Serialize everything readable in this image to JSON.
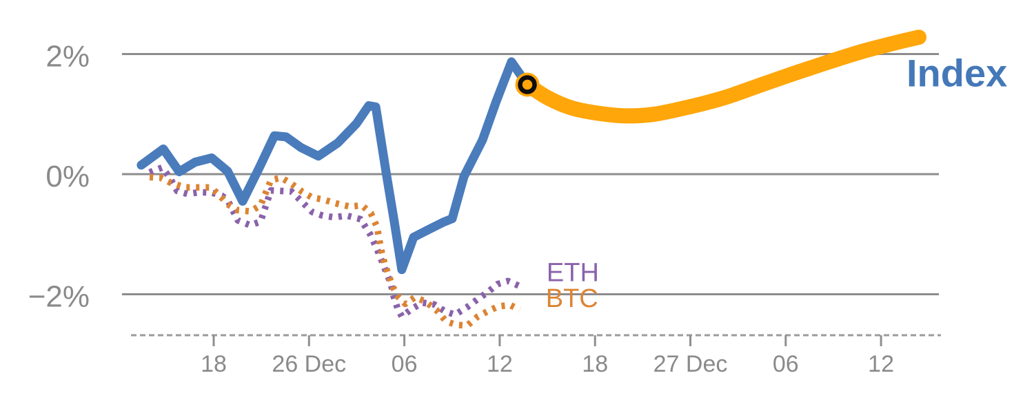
{
  "chart_data": {
    "type": "line",
    "title": "",
    "x_axis": {
      "unit": "hours (ticks every 6h, Dec 25 18:00 = t0)",
      "ticks": [
        {
          "t": 0,
          "label": "18"
        },
        {
          "t": 6,
          "label": "26 Dec"
        },
        {
          "t": 12,
          "label": "06"
        },
        {
          "t": 18,
          "label": "12"
        },
        {
          "t": 24,
          "label": "18"
        },
        {
          "t": 30,
          "label": "27 Dec"
        },
        {
          "t": 36,
          "label": "06"
        },
        {
          "t": 42,
          "label": "12"
        }
      ],
      "xlim": [
        -5.4,
        45.7
      ],
      "axis_line_style": "dashed",
      "grid": false
    },
    "y_axis": {
      "unit": "percent change",
      "ticks": [
        {
          "v": 2,
          "label": "2%"
        },
        {
          "v": 0,
          "label": "0%"
        },
        {
          "v": -2,
          "label": "−2%"
        }
      ],
      "ylim": [
        -2.68,
        2.4
      ],
      "gridlines": [
        2,
        0,
        -2
      ],
      "grid_color": "#8c8c8c",
      "label_color": "#8a8a8a"
    },
    "series": [
      {
        "name": "ETH",
        "color": "#8a62ab",
        "style": "dotted",
        "width": 9.5,
        "smooth": false,
        "points": [
          [
            -4.03,
            0.03
          ],
          [
            -3.25,
            0.11
          ],
          [
            -2.78,
            -0.05
          ],
          [
            -2.3,
            -0.28
          ],
          [
            -1.65,
            -0.33
          ],
          [
            -0.87,
            -0.3
          ],
          [
            -0.09,
            -0.31
          ],
          [
            0.52,
            -0.36
          ],
          [
            0.87,
            -0.43
          ],
          [
            1.52,
            -0.77
          ],
          [
            2.3,
            -0.85
          ],
          [
            2.95,
            -0.79
          ],
          [
            3.6,
            -0.27
          ],
          [
            4.25,
            -0.28
          ],
          [
            4.9,
            -0.29
          ],
          [
            5.55,
            -0.46
          ],
          [
            6.2,
            -0.63
          ],
          [
            6.86,
            -0.69
          ],
          [
            7.59,
            -0.72
          ],
          [
            8.37,
            -0.69
          ],
          [
            9.24,
            -0.75
          ],
          [
            9.85,
            -1.0
          ],
          [
            10.28,
            -1.25
          ],
          [
            10.63,
            -1.48
          ],
          [
            10.85,
            -1.63
          ],
          [
            11.15,
            -1.82
          ],
          [
            11.32,
            -2.03
          ],
          [
            11.58,
            -2.24
          ],
          [
            11.84,
            -2.37
          ],
          [
            12.49,
            -2.24
          ],
          [
            13.15,
            -2.14
          ],
          [
            13.88,
            -2.17
          ],
          [
            14.53,
            -2.28
          ],
          [
            15.18,
            -2.34
          ],
          [
            15.92,
            -2.22
          ],
          [
            16.57,
            -2.09
          ],
          [
            17.22,
            -1.97
          ],
          [
            17.87,
            -1.83
          ],
          [
            18.52,
            -1.78
          ],
          [
            19.22,
            -1.86
          ]
        ]
      },
      {
        "name": "BTC",
        "color": "#dc8433",
        "style": "dotted",
        "width": 9.5,
        "smooth": false,
        "points": [
          [
            -4.03,
            -0.05
          ],
          [
            -3.34,
            -0.06
          ],
          [
            -2.73,
            -0.14
          ],
          [
            -2.39,
            -0.17
          ],
          [
            -1.82,
            -0.22
          ],
          [
            -1.0,
            -0.22
          ],
          [
            -0.22,
            -0.22
          ],
          [
            0.3,
            -0.33
          ],
          [
            0.87,
            -0.5
          ],
          [
            1.52,
            -0.6
          ],
          [
            2.3,
            -0.62
          ],
          [
            2.95,
            -0.52
          ],
          [
            3.6,
            -0.1
          ],
          [
            4.25,
            -0.06
          ],
          [
            4.9,
            -0.16
          ],
          [
            5.55,
            -0.29
          ],
          [
            6.2,
            -0.39
          ],
          [
            6.86,
            -0.42
          ],
          [
            7.59,
            -0.48
          ],
          [
            8.55,
            -0.54
          ],
          [
            9.33,
            -0.52
          ],
          [
            9.89,
            -0.65
          ],
          [
            10.28,
            -0.88
          ],
          [
            10.54,
            -1.26
          ],
          [
            10.76,
            -1.49
          ],
          [
            10.98,
            -1.66
          ],
          [
            11.28,
            -1.88
          ],
          [
            11.63,
            -2.05
          ],
          [
            12.06,
            -2.16
          ],
          [
            12.67,
            -2.05
          ],
          [
            13.32,
            -2.12
          ],
          [
            14.01,
            -2.26
          ],
          [
            14.62,
            -2.45
          ],
          [
            15.27,
            -2.51
          ],
          [
            15.97,
            -2.52
          ],
          [
            16.62,
            -2.37
          ],
          [
            17.27,
            -2.28
          ],
          [
            17.92,
            -2.2
          ],
          [
            18.66,
            -2.18
          ],
          [
            19.26,
            -2.26
          ]
        ]
      },
      {
        "name": "Index",
        "color": "#4a7cbc",
        "style": "solid",
        "width": 13,
        "smooth": false,
        "points": [
          [
            -4.56,
            0.15
          ],
          [
            -3.17,
            0.42
          ],
          [
            -2.17,
            0.04
          ],
          [
            -1.17,
            0.2
          ],
          [
            -0.13,
            0.27
          ],
          [
            0.87,
            0.05
          ],
          [
            1.82,
            -0.45
          ],
          [
            2.82,
            0.08
          ],
          [
            3.82,
            0.64
          ],
          [
            4.56,
            0.62
          ],
          [
            5.51,
            0.44
          ],
          [
            6.59,
            0.3
          ],
          [
            7.81,
            0.52
          ],
          [
            8.98,
            0.84
          ],
          [
            9.76,
            1.14
          ],
          [
            10.2,
            1.12
          ],
          [
            10.85,
            0.03
          ],
          [
            11.37,
            -0.8
          ],
          [
            11.84,
            -1.59
          ],
          [
            12.58,
            -1.05
          ],
          [
            13.54,
            -0.92
          ],
          [
            14.45,
            -0.8
          ],
          [
            15.01,
            -0.74
          ],
          [
            15.75,
            -0.04
          ],
          [
            16.92,
            0.57
          ],
          [
            17.79,
            1.22
          ],
          [
            18.74,
            1.87
          ],
          [
            19.74,
            1.49
          ]
        ]
      },
      {
        "name": "Index projection",
        "color": "#ffa60a",
        "style": "solid",
        "width": 22,
        "smooth": true,
        "points": [
          [
            19.74,
            1.49
          ],
          [
            21.04,
            1.27
          ],
          [
            22.56,
            1.1
          ],
          [
            24.3,
            1.01
          ],
          [
            26.03,
            0.97
          ],
          [
            27.77,
            1.0
          ],
          [
            29.93,
            1.12
          ],
          [
            32.1,
            1.27
          ],
          [
            34.27,
            1.47
          ],
          [
            36.44,
            1.67
          ],
          [
            38.61,
            1.86
          ],
          [
            40.78,
            2.04
          ],
          [
            42.95,
            2.19
          ],
          [
            44.38,
            2.28
          ]
        ]
      }
    ],
    "marker": {
      "t": 19.74,
      "v": 1.49,
      "fill": "#ffa60a",
      "ring_color": "#0d0d0d"
    },
    "series_labels": [
      {
        "text": "Index",
        "color": "#4478b8",
        "t": 43.6,
        "v": 1.46,
        "size": 56,
        "bold": true
      },
      {
        "text": "ETH",
        "color": "#8a62ab",
        "t": 20.95,
        "v": -1.78,
        "size": 38,
        "bold": false
      },
      {
        "text": "BTC",
        "color": "#dc8433",
        "t": 20.9,
        "v": -2.21,
        "size": 38,
        "bold": false
      }
    ],
    "legend_position": "inline-right",
    "background": "#ffffff"
  }
}
